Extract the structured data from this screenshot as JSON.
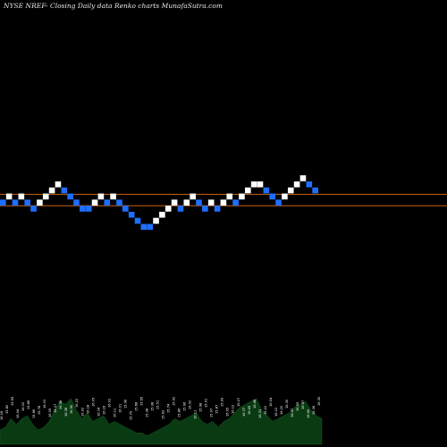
{
  "chart_data": {
    "type": "renko",
    "title": "NYSE NREF-  Closing Daily data  Renko  charts MunafaSutra.com",
    "colors": {
      "background": "#000000",
      "up_brick": "#ffffff",
      "down_brick": "#1e6fff",
      "reference_line": "#c86414",
      "volume_area": "#0a3a12",
      "volume_label": "#ffffff"
    },
    "grid": false,
    "brick_size": 0.16,
    "reference_levels": [
      16.14,
      15.84
    ],
    "bricks": [
      {
        "dir": "down",
        "close": 16.0
      },
      {
        "dir": "up",
        "close": 16.16
      },
      {
        "dir": "down",
        "close": 16.0
      },
      {
        "dir": "up",
        "close": 16.16
      },
      {
        "dir": "down",
        "close": 16.0
      },
      {
        "dir": "down",
        "close": 15.84
      },
      {
        "dir": "up",
        "close": 16.0
      },
      {
        "dir": "up",
        "close": 16.16
      },
      {
        "dir": "up",
        "close": 16.32
      },
      {
        "dir": "up",
        "close": 16.48
      },
      {
        "dir": "down",
        "close": 16.32
      },
      {
        "dir": "down",
        "close": 16.16
      },
      {
        "dir": "down",
        "close": 16.0
      },
      {
        "dir": "down",
        "close": 15.84
      },
      {
        "dir": "down",
        "close": 15.84
      },
      {
        "dir": "up",
        "close": 16.0
      },
      {
        "dir": "up",
        "close": 16.16
      },
      {
        "dir": "down",
        "close": 16.0
      },
      {
        "dir": "up",
        "close": 16.16
      },
      {
        "dir": "down",
        "close": 16.0
      },
      {
        "dir": "down",
        "close": 15.84
      },
      {
        "dir": "down",
        "close": 15.68
      },
      {
        "dir": "down",
        "close": 15.52
      },
      {
        "dir": "down",
        "close": 15.36
      },
      {
        "dir": "down",
        "close": 15.36
      },
      {
        "dir": "up",
        "close": 15.52
      },
      {
        "dir": "up",
        "close": 15.68
      },
      {
        "dir": "up",
        "close": 15.84
      },
      {
        "dir": "up",
        "close": 16.0
      },
      {
        "dir": "down",
        "close": 15.84
      },
      {
        "dir": "up",
        "close": 16.0
      },
      {
        "dir": "up",
        "close": 16.16
      },
      {
        "dir": "down",
        "close": 16.0
      },
      {
        "dir": "down",
        "close": 15.84
      },
      {
        "dir": "up",
        "close": 16.0
      },
      {
        "dir": "down",
        "close": 15.84
      },
      {
        "dir": "up",
        "close": 16.0
      },
      {
        "dir": "up",
        "close": 16.16
      },
      {
        "dir": "down",
        "close": 16.0
      },
      {
        "dir": "up",
        "close": 16.16
      },
      {
        "dir": "up",
        "close": 16.32
      },
      {
        "dir": "up",
        "close": 16.48
      },
      {
        "dir": "up",
        "close": 16.48
      },
      {
        "dir": "down",
        "close": 16.32
      },
      {
        "dir": "down",
        "close": 16.16
      },
      {
        "dir": "down",
        "close": 16.0
      },
      {
        "dir": "up",
        "close": 16.16
      },
      {
        "dir": "up",
        "close": 16.32
      },
      {
        "dir": "up",
        "close": 16.48
      },
      {
        "dir": "up",
        "close": 16.64
      },
      {
        "dir": "down",
        "close": 16.48
      },
      {
        "dir": "down",
        "close": 16.32
      }
    ],
    "volume_labels": [
      "16.16",
      "15.80",
      "15.95",
      "16.04",
      "16.10",
      "15.86",
      "15.66",
      "15.78",
      "16.03",
      "16.05",
      "16.27",
      "16.38",
      "16.38",
      "16.50",
      "16.22",
      "16.02",
      "16.18",
      "16.05",
      "16.14",
      "16.16",
      "16.02",
      "16.11",
      "16.01",
      "15.96",
      "15.79",
      "15.68",
      "15.55",
      "15.38",
      "15.38",
      "15.51",
      "15.63",
      "15.74",
      "15.92",
      "15.86",
      "15.96",
      "16.02",
      "16.11",
      "15.98",
      "15.91",
      "15.97",
      "15.87",
      "15.99",
      "16.05",
      "16.12",
      "16.27",
      "16.37",
      "16.45",
      "16.48",
      "16.31",
      "16.22",
      "16.04",
      "16.12",
      "16.20",
      "16.30",
      "16.47",
      "16.55",
      "16.67",
      "16.49",
      "16.36",
      "16.30"
    ],
    "volumes": [
      5,
      6,
      9,
      7,
      9,
      10,
      7,
      5,
      6,
      8,
      12,
      15,
      14,
      16,
      12,
      9,
      11,
      8,
      9,
      10,
      7,
      8,
      7,
      6,
      5,
      4,
      4,
      3,
      4,
      5,
      6,
      7,
      9,
      8,
      9,
      10,
      11,
      8,
      7,
      8,
      6,
      8,
      9,
      11,
      13,
      14,
      15,
      16,
      12,
      10,
      8,
      9,
      10,
      11,
      13,
      14,
      15,
      12,
      10,
      9
    ]
  }
}
